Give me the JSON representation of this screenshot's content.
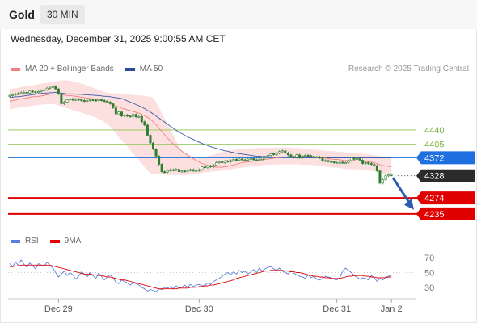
{
  "header": {
    "instrument": "Gold",
    "timeframe": "30 MIN",
    "datetime": "Wednesday, December 31, 2025 9:00:55 AM CET"
  },
  "legend": {
    "bollinger": "MA 20 + Bollinger Bands",
    "ma50": "MA 50",
    "credit": "Research © 2025 Trading Central"
  },
  "rsi_legend": {
    "rsi": "RSI",
    "ma9": "9MA"
  },
  "colors": {
    "bollinger": "#f08080",
    "band_fill": "#fbd5d5",
    "ma50": "#3a5aa8",
    "candle": "#2e7d32",
    "resistance": "#8bc34a",
    "pivot": "#1f6fe0",
    "last": "#2b2b2b",
    "support": "#e00000",
    "arrow": "#2a5db0",
    "rsi": "#5b7fd9",
    "rsi_ma": "#e00000"
  },
  "chart_data": [
    {
      "type": "candlestick",
      "x_labels": [
        "Dec 29",
        "Dec 30",
        "Dec 31",
        "Jan 2"
      ],
      "ylim": [
        4215,
        4570
      ],
      "levels": [
        {
          "label": "4440",
          "value": 4440,
          "kind": "resistance"
        },
        {
          "label": "4405",
          "value": 4405,
          "kind": "resistance"
        },
        {
          "label": "4372",
          "value": 4372,
          "kind": "pivot"
        },
        {
          "label": "4328",
          "value": 4328,
          "kind": "last"
        },
        {
          "label": "4274",
          "value": 4274,
          "kind": "support"
        },
        {
          "label": "4235",
          "value": 4235,
          "kind": "support"
        }
      ],
      "close": [
        4524,
        4526,
        4528,
        4529,
        4531,
        4532,
        4530,
        4535,
        4533,
        4531,
        4534,
        4536,
        4538,
        4542,
        4544,
        4546,
        4540,
        4528,
        4504,
        4508,
        4514,
        4516,
        4513,
        4515,
        4514,
        4512,
        4510,
        4512,
        4514,
        4513,
        4512,
        4514,
        4512,
        4510,
        4508,
        4504,
        4494,
        4479,
        4484,
        4474,
        4476,
        4474,
        4473,
        4478,
        4472,
        4473,
        4460,
        4452,
        4427,
        4408,
        4393,
        4376,
        4356,
        4338,
        4337,
        4341,
        4343,
        4342,
        4344,
        4338,
        4340,
        4339,
        4342,
        4343,
        4340,
        4341,
        4343,
        4350,
        4348,
        4352,
        4350,
        4354,
        4360,
        4362,
        4360,
        4364,
        4363,
        4365,
        4368,
        4366,
        4369,
        4367,
        4366,
        4369,
        4370,
        4367,
        4366,
        4368,
        4372,
        4374,
        4378,
        4382,
        4380,
        4383,
        4387,
        4389,
        4384,
        4379,
        4374,
        4373,
        4379,
        4372,
        4376,
        4378,
        4377,
        4375,
        4374,
        4374,
        4372,
        4365,
        4365,
        4363,
        4362,
        4360,
        4360,
        4361,
        4360,
        4360,
        4365,
        4372,
        4368,
        4370,
        4366,
        4358,
        4360,
        4358,
        4356,
        4353,
        4340,
        4310,
        4318,
        4328,
        4330,
        4331
      ],
      "indicators": {
        "ma20": [
          4510,
          4512,
          4513,
          4515,
          4516,
          4517,
          4518,
          4520,
          4521,
          4521,
          4522,
          4523,
          4524,
          4526,
          4527,
          4528,
          4528,
          4528,
          4527,
          4525,
          4524,
          4524,
          4523,
          4522,
          4521,
          4520,
          4519,
          4518,
          4517,
          4516,
          4515,
          4514,
          4512,
          4510,
          4508,
          4505,
          4502,
          4499,
          4496,
          4493,
          4491,
          4489,
          4487,
          4485,
          4483,
          4481,
          4478,
          4475,
          4471,
          4466,
          4460,
          4453,
          4445,
          4436,
          4428,
          4420,
          4413,
          4406,
          4400,
          4394,
          4388,
          4383,
          4378,
          4373,
          4369,
          4365,
          4362,
          4358,
          4356,
          4353,
          4351,
          4350,
          4349,
          4349,
          4349,
          4350,
          4351,
          4353,
          4354,
          4356,
          4358,
          4360,
          4361,
          4362,
          4363,
          4364,
          4365,
          4366,
          4367,
          4368,
          4369,
          4370,
          4371,
          4372,
          4373,
          4374,
          4374,
          4375,
          4375,
          4375,
          4376,
          4376,
          4376,
          4376,
          4375,
          4375,
          4374,
          4374,
          4373,
          4372,
          4371,
          4370,
          4369,
          4368,
          4368,
          4367,
          4366,
          4365,
          4365,
          4365,
          4365,
          4364,
          4364,
          4363,
          4363,
          4362,
          4361,
          4360,
          4358,
          4355,
          4353,
          4352,
          4351,
          4350
        ],
        "bollinger_upper": [
          4540,
          4541,
          4542,
          4543,
          4545,
          4546,
          4547,
          4548,
          4549,
          4550,
          4552,
          4553,
          4554,
          4555,
          4557,
          4558,
          4559,
          4560,
          4561,
          4562,
          4561,
          4560,
          4559,
          4558,
          4556,
          4553,
          4551,
          4548,
          4546,
          4543,
          4541,
          4538,
          4536,
          4533,
          4531,
          4530,
          4530,
          4529,
          4529,
          4528,
          4527,
          4527,
          4526,
          4525,
          4525,
          4524,
          4524,
          4523,
          4522,
          4521,
          4518,
          4508,
          4495,
          4481,
          4468,
          4454,
          4441,
          4427,
          4414,
          4400,
          4388,
          4384,
          4381,
          4377,
          4373,
          4370,
          4370,
          4371,
          4373,
          4376,
          4378,
          4380,
          4382,
          4384,
          4386,
          4388,
          4389,
          4390,
          4391,
          4392,
          4393,
          4394,
          4394,
          4394,
          4395,
          4395,
          4396,
          4396,
          4396,
          4396,
          4396,
          4396,
          4397,
          4397,
          4397,
          4397,
          4397,
          4397,
          4397,
          4396,
          4396,
          4395,
          4395,
          4394,
          4393,
          4392,
          4392,
          4391,
          4391,
          4390,
          4389,
          4389,
          4388,
          4388,
          4387,
          4386,
          4386,
          4385,
          4385,
          4384,
          4383,
          4383,
          4382,
          4381,
          4381,
          4380,
          4379,
          4378,
          4377,
          4376,
          4375,
          4374,
          4374,
          4373
        ],
        "bollinger_lower": [
          4490,
          4491,
          4493,
          4494,
          4495,
          4496,
          4497,
          4498,
          4499,
          4500,
          4501,
          4502,
          4502,
          4503,
          4503,
          4503,
          4502,
          4500,
          4498,
          4495,
          4493,
          4491,
          4488,
          4486,
          4484,
          4482,
          4480,
          4477,
          4475,
          4473,
          4470,
          4467,
          4463,
          4459,
          4455,
          4448,
          4440,
          4432,
          4423,
          4415,
          4407,
          4399,
          4390,
          4382,
          4374,
          4366,
          4358,
          4349,
          4341,
          4334,
          4333,
          4332,
          4332,
          4331,
          4331,
          4330,
          4330,
          4330,
          4330,
          4330,
          4329,
          4329,
          4330,
          4331,
          4332,
          4333,
          4334,
          4335,
          4336,
          4337,
          4338,
          4339,
          4339,
          4340,
          4341,
          4342,
          4343,
          4344,
          4345,
          4346,
          4347,
          4348,
          4349,
          4350,
          4351,
          4352,
          4353,
          4353,
          4354,
          4354,
          4355,
          4355,
          4355,
          4355,
          4356,
          4356,
          4356,
          4356,
          4356,
          4356,
          4356,
          4356,
          4355,
          4355,
          4355,
          4354,
          4354,
          4353,
          4353,
          4352,
          4351,
          4350,
          4349,
          4348,
          4348,
          4347,
          4346,
          4345,
          4345,
          4344,
          4344,
          4344,
          4343,
          4343,
          4342,
          4341,
          4340,
          4339,
          4338,
          4336,
          4334,
          4332,
          4330,
          4328
        ],
        "ma50": [
          4520,
          4520,
          4521,
          4521,
          4522,
          4523,
          4524,
          4525,
          4526,
          4527,
          4528,
          4529,
          4530,
          4530,
          4531,
          4531,
          4532,
          4531,
          4530,
          4529,
          4528,
          4528,
          4528,
          4527,
          4527,
          4527,
          4526,
          4526,
          4525,
          4525,
          4524,
          4524,
          4523,
          4522,
          4522,
          4521,
          4520,
          4519,
          4518,
          4517,
          4514,
          4511,
          4508,
          4505,
          4502,
          4499,
          4496,
          4492,
          4488,
          4484,
          4479,
          4474,
          4469,
          4464,
          4459,
          4454,
          4449,
          4444,
          4439,
          4435,
          4431,
          4427,
          4423,
          4420,
          4417,
          4413,
          4410,
          4407,
          4404,
          4402,
          4399,
          4397,
          4395,
          4393,
          4391,
          4389,
          4388,
          4386,
          4385,
          4383,
          4382,
          4381,
          4380,
          4379,
          4378,
          4377,
          4376,
          4376,
          4375,
          4375,
          4375,
          4374,
          4374,
          4374,
          4374,
          4373,
          4373,
          4373,
          4373,
          4373,
          4372,
          4372,
          4372,
          4372,
          4372,
          4372,
          4372,
          4372,
          4372,
          4372,
          4372,
          4372,
          4372,
          4372,
          4372,
          4372,
          4372,
          4372,
          4372,
          4372,
          4372,
          4372,
          4372,
          4372,
          4372,
          4372,
          4372,
          4372,
          4372,
          4372,
          4372,
          4372,
          4372,
          4372
        ]
      },
      "projection": {
        "from": 4323,
        "to": 4245
      }
    },
    {
      "type": "line",
      "ylim": [
        20,
        80
      ],
      "y_ticks": [
        "70",
        "50",
        "30"
      ],
      "series": [
        {
          "name": "RSI",
          "values": [
            62,
            58,
            64,
            60,
            67,
            61,
            57,
            63,
            59,
            55,
            62,
            60,
            58,
            64,
            60,
            56,
            50,
            44,
            48,
            52,
            46,
            50,
            47,
            41,
            45,
            51,
            48,
            44,
            50,
            46,
            42,
            49,
            45,
            40,
            44,
            47,
            43,
            37,
            35,
            40,
            38,
            36,
            33,
            36,
            35,
            33,
            30,
            28,
            25,
            27,
            26,
            24,
            28,
            27,
            30,
            29,
            31,
            28,
            32,
            29,
            30,
            33,
            30,
            34,
            31,
            33,
            34,
            32,
            33,
            36,
            34,
            38,
            40,
            42,
            45,
            48,
            50,
            47,
            51,
            48,
            53,
            50,
            52,
            48,
            51,
            54,
            50,
            56,
            52,
            55,
            57,
            58,
            55,
            53,
            56,
            52,
            50,
            48,
            53,
            49,
            47,
            45,
            44,
            42,
            47,
            43,
            45,
            41,
            40,
            42,
            45,
            44,
            43,
            41,
            40,
            43,
            52,
            56,
            53,
            50,
            46,
            44,
            41,
            43,
            42,
            40,
            46,
            43,
            38,
            42,
            40,
            44,
            45,
            46
          ]
        },
        {
          "name": "9MA",
          "values": [
            58,
            58,
            59,
            59,
            60,
            60,
            60,
            60,
            60,
            60,
            60,
            60,
            60,
            60,
            60,
            59,
            58,
            57,
            56,
            55,
            54,
            53,
            52,
            51,
            50,
            49,
            48,
            48,
            48,
            47,
            47,
            46,
            46,
            45,
            44,
            44,
            43,
            42,
            41,
            40,
            40,
            39,
            38,
            37,
            36,
            35,
            34,
            33,
            32,
            31,
            30,
            29,
            28,
            28,
            28,
            28,
            28,
            28,
            28,
            29,
            29,
            29,
            29,
            30,
            30,
            30,
            31,
            31,
            32,
            32,
            33,
            33,
            34,
            35,
            36,
            37,
            38,
            39,
            40,
            42,
            43,
            44,
            45,
            46,
            47,
            48,
            49,
            50,
            51,
            52,
            52,
            53,
            53,
            53,
            53,
            53,
            52,
            52,
            51,
            51,
            50,
            50,
            49,
            48,
            47,
            46,
            45,
            45,
            44,
            44,
            43,
            43,
            42,
            42,
            42,
            42,
            43,
            44,
            45,
            45,
            46,
            46,
            46,
            46,
            45,
            45,
            44,
            44,
            43,
            43,
            43,
            43,
            44,
            44
          ]
        }
      ]
    }
  ]
}
